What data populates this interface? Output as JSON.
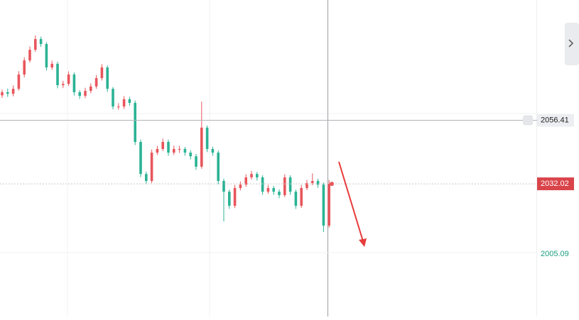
{
  "chart_data": {
    "type": "candlestick",
    "candles": [
      [
        2066.0,
        2068.2,
        2065.0,
        2067.2
      ],
      [
        2067.2,
        2068.6,
        2065.4,
        2066.6
      ],
      [
        2066.6,
        2069.8,
        2065.6,
        2068.5
      ],
      [
        2068.5,
        2075.3,
        2067.8,
        2074.0
      ],
      [
        2074.0,
        2080.6,
        2072.9,
        2079.4
      ],
      [
        2079.4,
        2084.8,
        2078.6,
        2083.5
      ],
      [
        2083.5,
        2089.0,
        2082.7,
        2087.6
      ],
      [
        2087.6,
        2088.5,
        2084.6,
        2085.7
      ],
      [
        2085.7,
        2086.4,
        2075.5,
        2076.7
      ],
      [
        2076.7,
        2079.3,
        2075.8,
        2078.1
      ],
      [
        2078.1,
        2078.9,
        2068.7,
        2069.9
      ],
      [
        2069.9,
        2071.6,
        2068.8,
        2070.4
      ],
      [
        2070.4,
        2075.2,
        2069.6,
        2074.0
      ],
      [
        2074.0,
        2074.8,
        2065.9,
        2067.2
      ],
      [
        2067.2,
        2068.0,
        2064.6,
        2065.8
      ],
      [
        2065.8,
        2068.9,
        2064.9,
        2067.7
      ],
      [
        2067.7,
        2070.6,
        2066.8,
        2069.4
      ],
      [
        2069.4,
        2073.8,
        2068.5,
        2072.6
      ],
      [
        2072.6,
        2078.0,
        2071.7,
        2076.7
      ],
      [
        2076.7,
        2077.5,
        2067.3,
        2068.5
      ],
      [
        2068.5,
        2069.2,
        2060.6,
        2061.7
      ],
      [
        2061.7,
        2063.0,
        2060.5,
        2061.7
      ],
      [
        2061.7,
        2065.7,
        2060.8,
        2064.5
      ],
      [
        2064.5,
        2065.4,
        2062.0,
        2063.1
      ],
      [
        2063.1,
        2064.0,
        2046.9,
        2048.1
      ],
      [
        2048.1,
        2049.0,
        2034.6,
        2035.8
      ],
      [
        2035.8,
        2036.7,
        2031.9,
        2033.1
      ],
      [
        2033.1,
        2045.2,
        2032.3,
        2044.0
      ],
      [
        2044.0,
        2046.6,
        2043.1,
        2045.4
      ],
      [
        2045.4,
        2049.4,
        2044.6,
        2048.1
      ],
      [
        2048.1,
        2049.0,
        2042.8,
        2044.0
      ],
      [
        2044.0,
        2046.7,
        2043.1,
        2045.4
      ],
      [
        2045.4,
        2046.6,
        2043.9,
        2045.4
      ],
      [
        2045.4,
        2046.2,
        2042.8,
        2044.0
      ],
      [
        2044.0,
        2044.9,
        2041.4,
        2042.6
      ],
      [
        2042.6,
        2043.5,
        2037.4,
        2038.6
      ],
      [
        2038.6,
        2063.6,
        2037.8,
        2053.6
      ],
      [
        2053.6,
        2054.4,
        2044.2,
        2045.4
      ],
      [
        2045.4,
        2046.3,
        2042.8,
        2044.0
      ],
      [
        2044.0,
        2044.8,
        2031.9,
        2033.1
      ],
      [
        2033.1,
        2034.0,
        2017.6,
        2029.0
      ],
      [
        2029.0,
        2029.8,
        2022.4,
        2023.6
      ],
      [
        2023.6,
        2031.6,
        2022.7,
        2030.4
      ],
      [
        2030.4,
        2032.9,
        2029.5,
        2031.7
      ],
      [
        2031.7,
        2035.7,
        2030.9,
        2034.5
      ],
      [
        2034.5,
        2037.0,
        2033.6,
        2035.8
      ],
      [
        2035.8,
        2036.6,
        2033.3,
        2034.5
      ],
      [
        2034.5,
        2035.3,
        2027.8,
        2029.0
      ],
      [
        2029.0,
        2031.6,
        2028.2,
        2030.4
      ],
      [
        2030.4,
        2031.2,
        2027.8,
        2029.0
      ],
      [
        2029.0,
        2029.9,
        2026.5,
        2027.7
      ],
      [
        2027.7,
        2035.7,
        2026.9,
        2034.5
      ],
      [
        2034.5,
        2035.3,
        2027.8,
        2029.0
      ],
      [
        2029.0,
        2029.8,
        2022.4,
        2023.6
      ],
      [
        2023.6,
        2031.6,
        2022.8,
        2030.4
      ],
      [
        2030.4,
        2033.5,
        2029.6,
        2032.3
      ],
      [
        2032.3,
        2036.0,
        2031.5,
        2033.1
      ],
      [
        2033.1,
        2034.0,
        2030.5,
        2031.7
      ],
      [
        2031.7,
        2032.5,
        2013.5,
        2016.0
      ],
      [
        2016.0,
        2033.5,
        2015.2,
        2032.02
      ]
    ],
    "up_color": "#e8565c",
    "down_color": "#2bb394",
    "ylim": [
      1981.1,
      2102.6
    ],
    "yticks": [
      2005.09
    ],
    "crosshair_price": 2056.41,
    "last_price": 2032.02
  }
}
